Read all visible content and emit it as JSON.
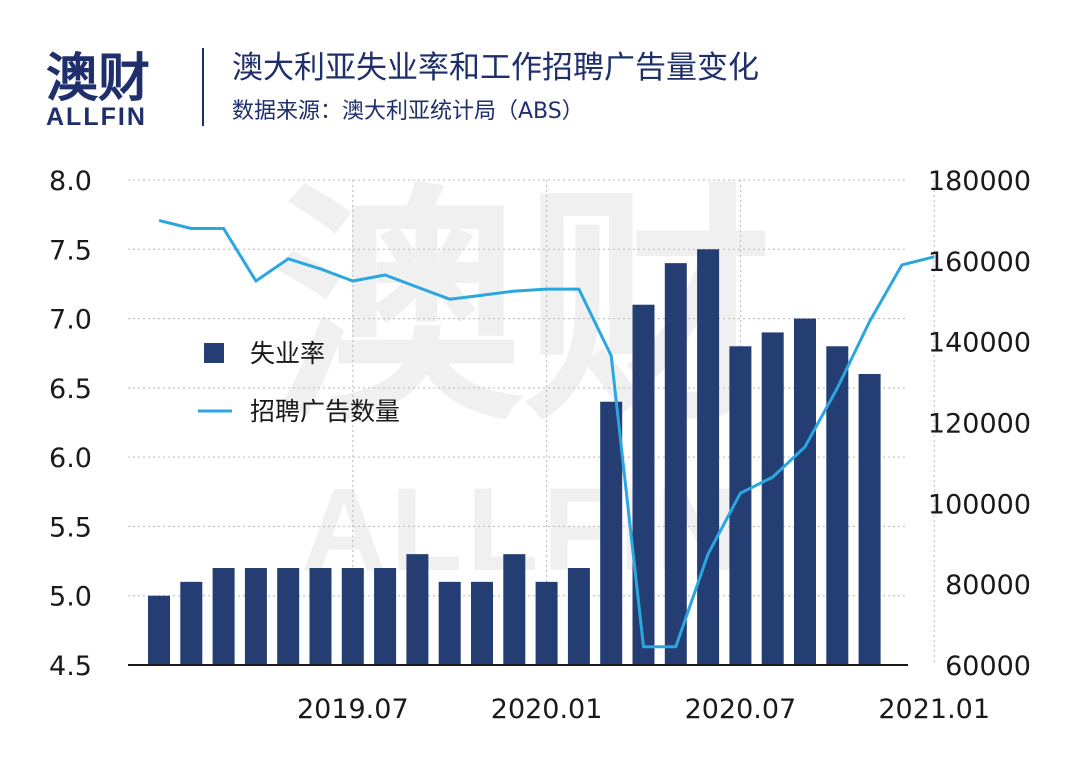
{
  "brand": {
    "name_cn": "澳财",
    "name_en": "ALLFIN"
  },
  "header": {
    "title": "澳大利亚失业率和工作招聘广告量变化",
    "source": "数据来源：澳大利亚统计局（ABS）"
  },
  "colors": {
    "bars": "#243d73",
    "line": "#2aa7e0",
    "brand_navy": "#1e2f6b",
    "brand_accent": "#d0315a",
    "text": "#1a1a1a",
    "grid": "#b8b8b8",
    "watermark": "#f1f1f1"
  },
  "chart_data": {
    "type": "bar",
    "title": "澳大利亚失业率和工作招聘广告量变化",
    "x_tick_labels": [
      "2019.07",
      "2020.01",
      "2020.07",
      "2021.01"
    ],
    "y_left": {
      "ticks": [
        "8.0",
        "7.5",
        "7.0",
        "6.5",
        "6.0",
        "5.5",
        "5.0",
        "4.5"
      ],
      "lim": [
        4.5,
        8.0
      ]
    },
    "y_right": {
      "ticks": [
        "180000",
        "160000",
        "140000",
        "120000",
        "100000",
        "80000",
        "60000"
      ],
      "lim": [
        60000,
        180000
      ]
    },
    "legend": {
      "placement": "center-left",
      "bar_label": "失业率",
      "line_label": "招聘广告数量"
    },
    "grid": "horizontal dotted",
    "series": [
      {
        "name": "失业率",
        "type": "bar",
        "axis": "left",
        "x": [
          "2019.01",
          "2019.02",
          "2019.03",
          "2019.04",
          "2019.05",
          "2019.06",
          "2019.07",
          "2019.08",
          "2019.09",
          "2019.10",
          "2019.11",
          "2019.12",
          "2020.01",
          "2020.02",
          "2020.03",
          "2020.04",
          "2020.05",
          "2020.06",
          "2020.07",
          "2020.08",
          "2020.09",
          "2020.10",
          "2020.11",
          "2020.12"
        ],
        "values": [
          5.0,
          5.1,
          5.2,
          5.2,
          5.2,
          5.2,
          5.2,
          5.2,
          5.3,
          5.1,
          5.1,
          5.3,
          5.1,
          5.2,
          6.4,
          7.1,
          7.4,
          7.5,
          6.8,
          6.9,
          7.0,
          6.8,
          6.6,
          null
        ]
      },
      {
        "name": "招聘广告数量",
        "type": "line",
        "axis": "right",
        "x": [
          "2019.01",
          "2019.02",
          "2019.03",
          "2019.04",
          "2019.05",
          "2019.06",
          "2019.07",
          "2019.08",
          "2019.09",
          "2019.10",
          "2019.11",
          "2019.12",
          "2020.01",
          "2020.02",
          "2020.03",
          "2020.04",
          "2020.05",
          "2020.06",
          "2020.07",
          "2020.08",
          "2020.09",
          "2020.10",
          "2020.11",
          "2020.12",
          "2021.01"
        ],
        "values": [
          170000,
          168000,
          168000,
          155000,
          160500,
          158000,
          155000,
          156500,
          153500,
          150500,
          151500,
          152500,
          153000,
          153000,
          136500,
          64500,
          64500,
          87500,
          102500,
          106500,
          114000,
          128500,
          145000,
          159000,
          161000
        ]
      }
    ]
  }
}
